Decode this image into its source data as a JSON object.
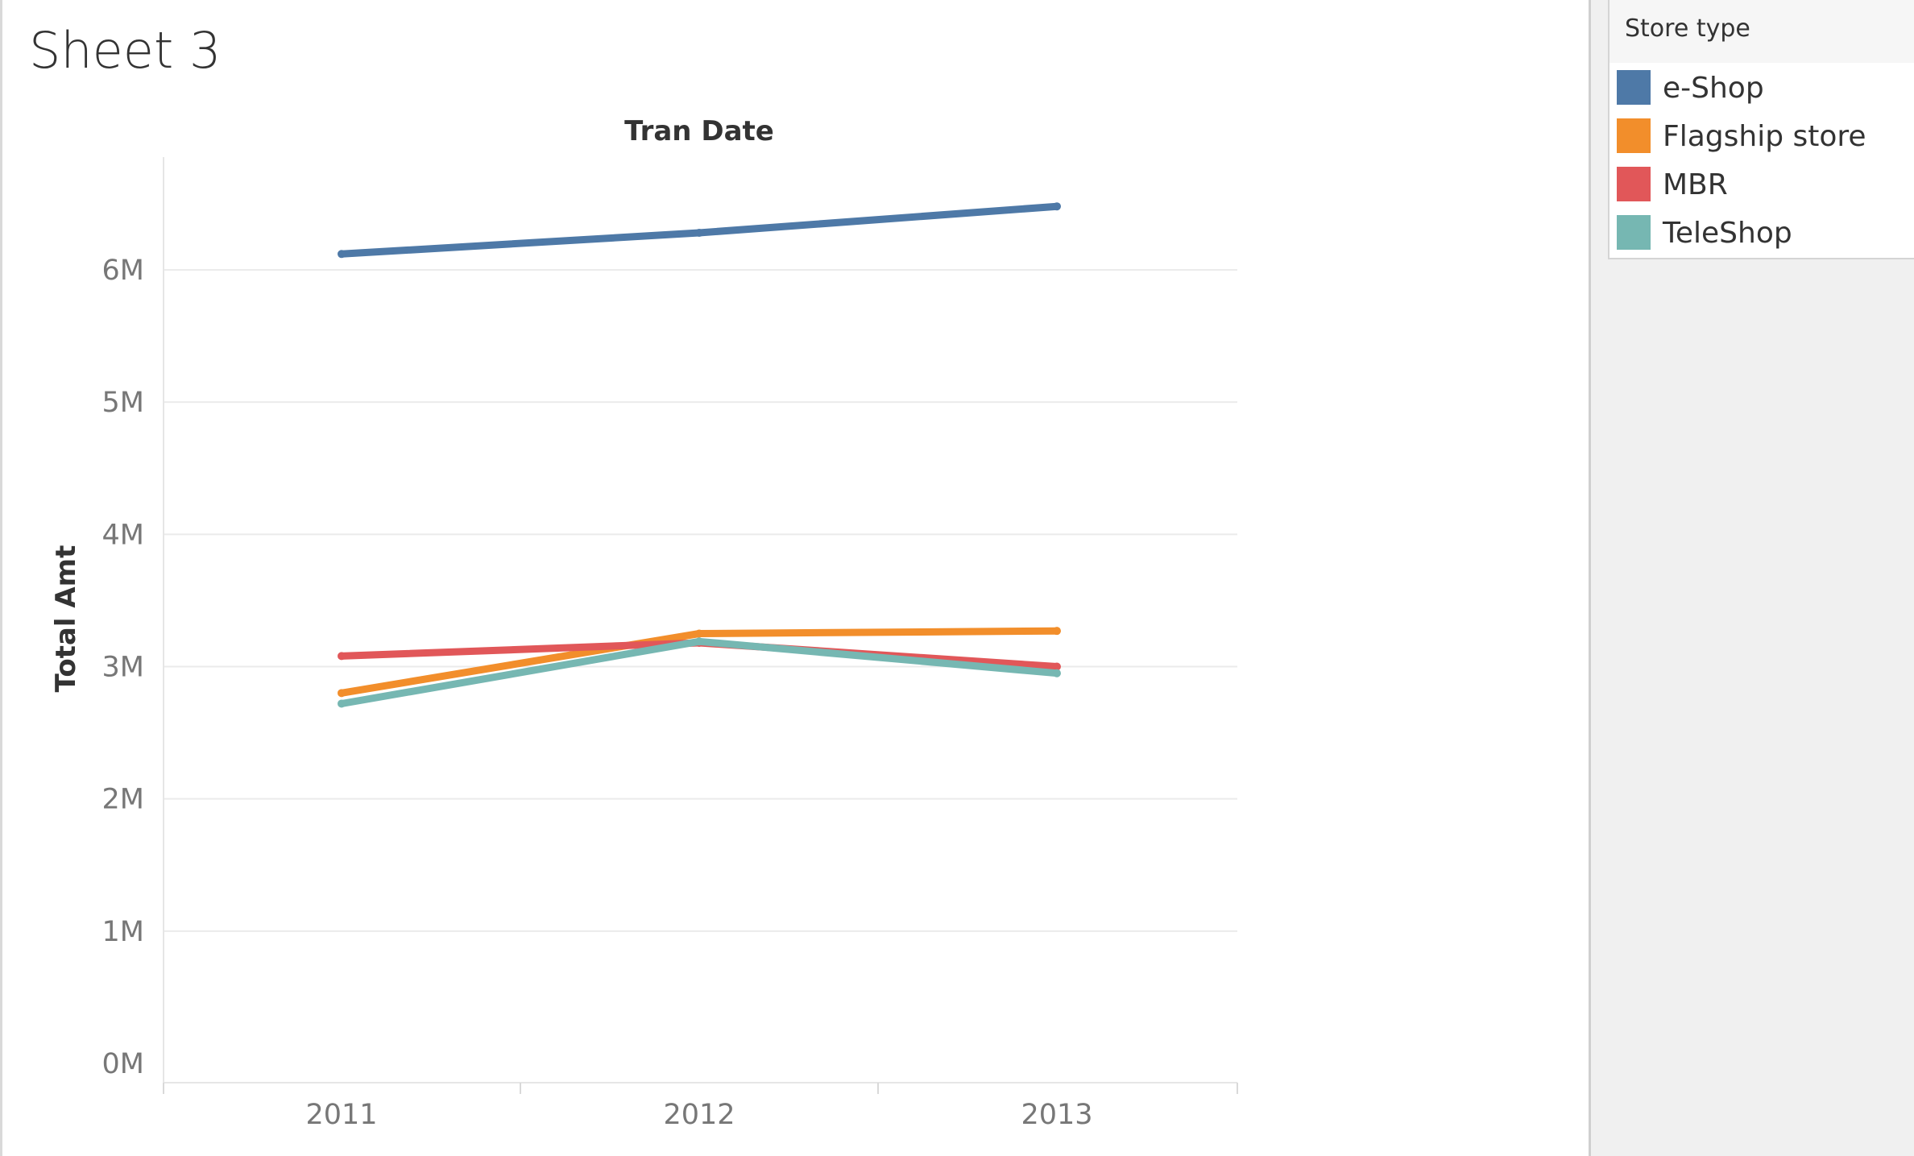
{
  "sheet": {
    "title": "Sheet 3"
  },
  "legend": {
    "title": "Store type",
    "items": [
      {
        "label": "e-Shop",
        "color": "#4e79a7"
      },
      {
        "label": "Flagship store",
        "color": "#f28e2b"
      },
      {
        "label": "MBR",
        "color": "#e15759"
      },
      {
        "label": "TeleShop",
        "color": "#76b7b2"
      }
    ]
  },
  "chart_data": {
    "type": "line",
    "title": "Tran Date",
    "xlabel": "",
    "ylabel": "Total Amt",
    "categories": [
      "2011",
      "2012",
      "2013"
    ],
    "ylim": [
      0,
      6800000
    ],
    "yticks": [
      0,
      1000000,
      2000000,
      3000000,
      4000000,
      5000000,
      6000000
    ],
    "ytick_labels": [
      "0M",
      "1M",
      "2M",
      "3M",
      "4M",
      "5M",
      "6M"
    ],
    "grid": true,
    "legend_position": "right",
    "series": [
      {
        "name": "e-Shop",
        "color": "#4e79a7",
        "values": [
          6120000,
          6280000,
          6480000
        ]
      },
      {
        "name": "Flagship store",
        "color": "#f28e2b",
        "values": [
          2800000,
          3250000,
          3270000
        ]
      },
      {
        "name": "MBR",
        "color": "#e15759",
        "values": [
          3080000,
          3180000,
          3000000
        ]
      },
      {
        "name": "TeleShop",
        "color": "#76b7b2",
        "values": [
          2720000,
          3190000,
          2950000
        ]
      }
    ]
  }
}
